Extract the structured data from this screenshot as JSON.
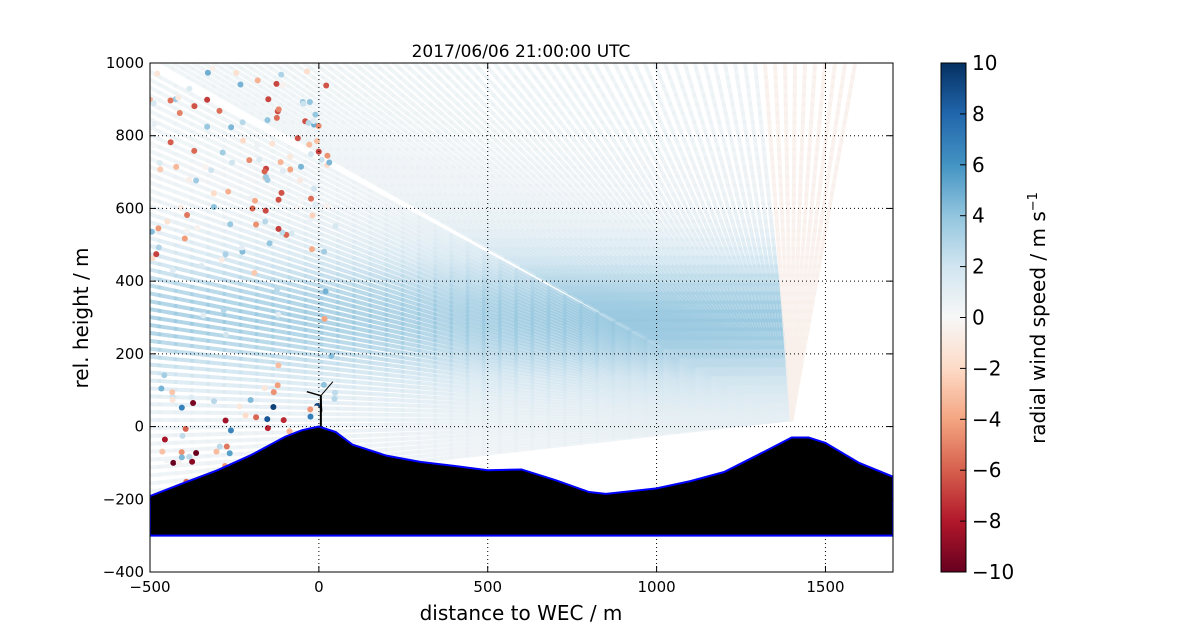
{
  "chart_data": {
    "type": "scatter",
    "title": "2017/06/06 21:00:00 UTC",
    "xlabel": "distance to WEC / m",
    "ylabel": "rel. height / m",
    "xlim": [
      -500,
      1700
    ],
    "ylim": [
      -400,
      1000
    ],
    "xticks": [
      -500,
      0,
      500,
      1000,
      1500
    ],
    "xtick_labels": [
      "−500",
      "0",
      "500",
      "1000",
      "1500"
    ],
    "yticks": [
      -400,
      -200,
      0,
      200,
      400,
      600,
      800,
      1000
    ],
    "ytick_labels": [
      "−400",
      "−200",
      "0",
      "200",
      "400",
      "600",
      "800",
      "1000"
    ],
    "grid": true,
    "lidar_position": {
      "x": 1400,
      "y": 20
    },
    "wec_position": {
      "x": 0,
      "y": 0,
      "hub_height": 85
    },
    "terrain": {
      "name": "terrain",
      "base": -300,
      "x": [
        -500,
        -400,
        -300,
        -200,
        -100,
        -50,
        0,
        50,
        100,
        200,
        300,
        400,
        500,
        600,
        700,
        800,
        850,
        1000,
        1100,
        1200,
        1300,
        1400,
        1450,
        1500,
        1600,
        1700
      ],
      "y": [
        -191,
        -155,
        -120,
        -78,
        -28,
        -10,
        0,
        -15,
        -50,
        -80,
        -97,
        -108,
        -120,
        -118,
        -147,
        -180,
        -185,
        -170,
        -150,
        -125,
        -78,
        -30,
        -30,
        -45,
        -100,
        -138
      ]
    },
    "colorbar": {
      "label": "radial wind speed / m s",
      "label_superscript": "−1",
      "range": [
        -10,
        10
      ],
      "ticks": [
        10,
        8,
        6,
        4,
        2,
        0,
        -2,
        -4,
        -6,
        -8,
        -10
      ],
      "tick_labels": [
        "10",
        "8",
        "6",
        "4",
        "2",
        "0",
        "−2",
        "−4",
        "−6",
        "−8",
        "−10"
      ],
      "colormap": "RdBu"
    },
    "colors": {
      "terrain_fill": "#000000",
      "terrain_edge": "#0000ff"
    }
  }
}
